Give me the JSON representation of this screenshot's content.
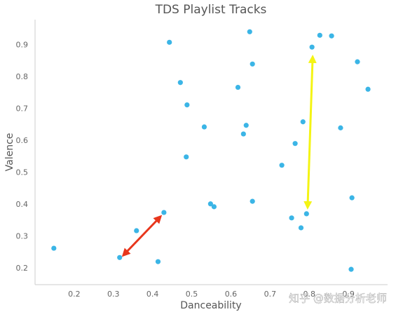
{
  "chart_data": {
    "type": "scatter",
    "title": "TDS Playlist Tracks",
    "x_label": "Danceability",
    "y_label": "Valence",
    "x": [
      0.148,
      0.316,
      0.359,
      0.414,
      0.429,
      0.443,
      0.471,
      0.488,
      0.486,
      0.532,
      0.548,
      0.557,
      0.618,
      0.632,
      0.639,
      0.648,
      0.655,
      0.655,
      0.73,
      0.755,
      0.764,
      0.779,
      0.784,
      0.793,
      0.807,
      0.827,
      0.857,
      0.88,
      0.907,
      0.909,
      0.923,
      0.95
    ],
    "values": [
      0.264,
      0.235,
      0.319,
      0.222,
      0.376,
      0.909,
      0.783,
      0.713,
      0.55,
      0.644,
      0.403,
      0.394,
      0.768,
      0.622,
      0.649,
      0.942,
      0.841,
      0.411,
      0.524,
      0.359,
      0.592,
      0.328,
      0.66,
      0.372,
      0.894,
      0.931,
      0.929,
      0.641,
      0.198,
      0.422,
      0.848,
      0.762
    ],
    "color": "#3bb5e6",
    "xlim": [
      0.1,
      1.0
    ],
    "ylim": [
      0.15,
      0.98
    ],
    "xticks": [
      0.2,
      0.3,
      0.4,
      0.5,
      0.6,
      0.7,
      0.8,
      0.9
    ],
    "yticks": [
      0.2,
      0.3,
      0.4,
      0.5,
      0.6,
      0.7,
      0.8,
      0.9
    ],
    "grid": false
  },
  "watermark": "知乎 @数据分析老师"
}
